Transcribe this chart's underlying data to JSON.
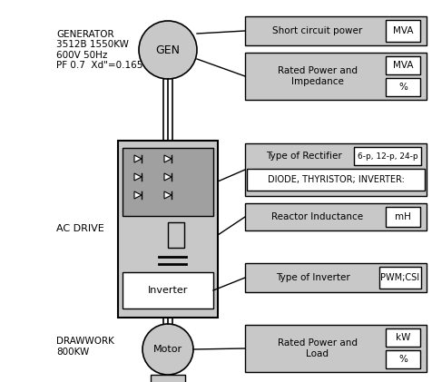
{
  "bg_color": "#ffffff",
  "gray_light": "#c8c8c8",
  "gray_mid": "#a0a0a0",
  "gray_dark": "#808080",
  "white": "#ffffff",
  "black": "#000000",
  "generator_label": "GENERATOR\n3512B 1550KW\n600V 50Hz\nPF 0.7  Xd\"=0.165",
  "gen_text": "GEN",
  "ac_drive_label": "AC DRIVE",
  "drawwork_label": "DRAWWORK\n800KW",
  "motor_text": "Motor",
  "inverter_text": "Inverter",
  "box1_label": "Short circuit power",
  "box1_unit": "MVA",
  "box2_label": "Rated Power and\nImpedance",
  "box2_unit1": "MVA",
  "box2_unit2": "%",
  "box3_label": "Type of Rectifier",
  "box3_unit": "6-p, 12-p, 24-p",
  "box3_sub": "DIODE, THYRISTOR; INVERTER:",
  "box4_label": "Reactor Inductance",
  "box4_unit": "mH",
  "box5_label": "Type of Inverter",
  "box5_unit": "PWM;CSI",
  "box6_label": "Rated Power and\nLoad",
  "box6_unit1": "kW",
  "box6_unit2": "%"
}
